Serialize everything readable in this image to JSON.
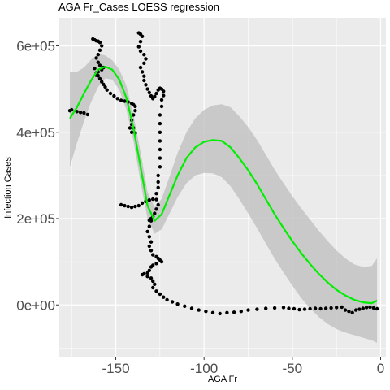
{
  "chart_data": {
    "type": "scatter",
    "title": "AGA Fr_Cases LOESS regression",
    "xlabel": "AGA Fr",
    "ylabel": "Infection Cases",
    "xlim": [
      -182,
      3
    ],
    "ylim": [
      -120000,
      665000
    ],
    "x_ticks": [
      -150,
      -100,
      -50,
      0
    ],
    "x_tick_labels": [
      "-150",
      "-100",
      "-50",
      "0"
    ],
    "y_ticks": [
      0,
      200000,
      400000,
      600000
    ],
    "y_tick_labels": [
      "0e+00",
      "2e+05",
      "4e+05",
      "6e+05"
    ],
    "grid": true,
    "panel_background": "#ebebeb",
    "grid_color": "#ffffff",
    "point_color": "#000000",
    "smooth_color": "#00ee00",
    "ribbon_color": "#bebebe",
    "points": [
      [
        -176,
        450000
      ],
      [
        -175,
        452000
      ],
      [
        -172,
        448000
      ],
      [
        -170,
        446000
      ],
      [
        -168,
        445000
      ],
      [
        -166,
        441000
      ],
      [
        -162,
        548000
      ],
      [
        -161,
        538000
      ],
      [
        -160,
        531000
      ],
      [
        -159,
        524000
      ],
      [
        -158,
        517000
      ],
      [
        -157,
        511000
      ],
      [
        -156,
        505000
      ],
      [
        -155,
        498000
      ],
      [
        -153,
        490000
      ],
      [
        -151,
        484000
      ],
      [
        -149,
        478000
      ],
      [
        -147,
        474000
      ],
      [
        -145,
        472000
      ],
      [
        -143,
        470000
      ],
      [
        -141,
        467000
      ],
      [
        -140,
        464000
      ],
      [
        -139,
        460000
      ],
      [
        -139,
        450000
      ],
      [
        -140,
        440000
      ],
      [
        -141,
        428000
      ],
      [
        -141,
        418000
      ],
      [
        -142,
        410000
      ],
      [
        -141,
        400000
      ],
      [
        -139,
        398000
      ],
      [
        -140,
        410000
      ],
      [
        -163,
        616000
      ],
      [
        -162,
        614000
      ],
      [
        -161,
        612000
      ],
      [
        -160,
        611000
      ],
      [
        -159,
        608000
      ],
      [
        -158,
        600000
      ],
      [
        -159,
        590000
      ],
      [
        -160,
        580000
      ],
      [
        -161,
        572000
      ],
      [
        -160,
        562000
      ],
      [
        -159,
        555000
      ],
      [
        -157,
        550000
      ],
      [
        -158,
        545000
      ],
      [
        -160,
        540000
      ],
      [
        -161,
        532000
      ],
      [
        -137,
        630000
      ],
      [
        -136,
        627000
      ],
      [
        -135,
        622000
      ],
      [
        -136,
        610000
      ],
      [
        -137,
        598000
      ],
      [
        -136,
        588000
      ],
      [
        -134,
        580000
      ],
      [
        -133,
        570000
      ],
      [
        -134,
        560000
      ],
      [
        -136,
        550000
      ],
      [
        -135,
        540000
      ],
      [
        -134,
        530000
      ],
      [
        -134,
        520000
      ],
      [
        -133,
        510000
      ],
      [
        -132,
        500000
      ],
      [
        -131,
        492000
      ],
      [
        -130,
        484000
      ],
      [
        -129,
        478000
      ],
      [
        -128,
        483000
      ],
      [
        -127,
        490000
      ],
      [
        -126,
        498000
      ],
      [
        -125,
        502000
      ],
      [
        -124,
        500000
      ],
      [
        -123,
        495000
      ],
      [
        -123,
        485000
      ],
      [
        -124,
        475000
      ],
      [
        -124,
        460000
      ],
      [
        -125,
        440000
      ],
      [
        -125,
        420000
      ],
      [
        -125,
        400000
      ],
      [
        -125,
        380000
      ],
      [
        -125,
        360000
      ],
      [
        -125,
        340000
      ],
      [
        -125,
        320000
      ],
      [
        -126,
        300000
      ],
      [
        -126,
        285000
      ],
      [
        -126,
        272000
      ],
      [
        -127,
        258000
      ],
      [
        -127,
        244000
      ],
      [
        -126,
        232000
      ],
      [
        -127,
        222000
      ],
      [
        -128,
        212000
      ],
      [
        -129,
        205000
      ],
      [
        -130,
        200000
      ],
      [
        -131,
        196000
      ],
      [
        -147,
        232000
      ],
      [
        -145,
        230000
      ],
      [
        -143,
        228000
      ],
      [
        -141,
        226000
      ],
      [
        -139,
        228000
      ],
      [
        -137,
        230000
      ],
      [
        -135,
        236000
      ],
      [
        -133,
        240000
      ],
      [
        -131,
        243000
      ],
      [
        -129,
        245000
      ],
      [
        -130,
        195000
      ],
      [
        -131,
        182000
      ],
      [
        -132,
        170000
      ],
      [
        -131,
        158000
      ],
      [
        -130,
        146000
      ],
      [
        -131,
        136000
      ],
      [
        -130,
        126000
      ],
      [
        -129,
        116000
      ],
      [
        -127,
        112000
      ],
      [
        -126,
        108000
      ],
      [
        -125,
        104000
      ],
      [
        -124,
        100000
      ],
      [
        -127,
        96000
      ],
      [
        -129,
        92000
      ],
      [
        -130,
        88000
      ],
      [
        -131,
        80000
      ],
      [
        -132,
        74000
      ],
      [
        -134,
        72000
      ],
      [
        -135,
        70000
      ],
      [
        -132,
        66000
      ],
      [
        -130,
        62000
      ],
      [
        -129,
        55000
      ],
      [
        -128,
        48000
      ],
      [
        -129,
        40000
      ],
      [
        -127,
        32000
      ],
      [
        -125,
        25000
      ],
      [
        -123,
        18000
      ],
      [
        -121,
        12000
      ],
      [
        -118,
        7000
      ],
      [
        -115,
        2000
      ],
      [
        -111,
        -3000
      ],
      [
        -107,
        -8000
      ],
      [
        -103,
        -12000
      ],
      [
        -99,
        -15000
      ],
      [
        -95,
        -18000
      ],
      [
        -91,
        -20000
      ],
      [
        -87,
        -18000
      ],
      [
        -83,
        -17000
      ],
      [
        -79,
        -15000
      ],
      [
        -75,
        -12000
      ],
      [
        -70,
        -10000
      ],
      [
        -65,
        -8000
      ],
      [
        -60,
        -7000
      ],
      [
        -55,
        -6000
      ],
      [
        -52,
        -8000
      ],
      [
        -49,
        -9000
      ],
      [
        -46,
        -11000
      ],
      [
        -43,
        -10000
      ],
      [
        -40,
        -9000
      ],
      [
        -37,
        -8000
      ],
      [
        -34,
        -9000
      ],
      [
        -31,
        -8000
      ],
      [
        -28,
        -7000
      ],
      [
        -25,
        -6000
      ],
      [
        -22,
        -5000
      ],
      [
        -20,
        -12000
      ],
      [
        -18,
        -15000
      ],
      [
        -16,
        -18000
      ],
      [
        -14,
        -12000
      ],
      [
        -12,
        -10000
      ],
      [
        -10,
        -8000
      ],
      [
        -8,
        -6000
      ],
      [
        -6,
        -5000
      ],
      [
        -4,
        -7000
      ],
      [
        -2,
        -9000
      ]
    ],
    "smooth": {
      "x": [
        -176,
        -172,
        -168,
        -164,
        -160,
        -156,
        -152,
        -148,
        -144,
        -140,
        -136,
        -132,
        -128,
        -124,
        -120,
        -115,
        -110,
        -105,
        -100,
        -95,
        -90,
        -85,
        -80,
        -75,
        -70,
        -65,
        -60,
        -55,
        -50,
        -45,
        -40,
        -35,
        -30,
        -25,
        -20,
        -15,
        -10,
        -5,
        -2
      ],
      "y": [
        432000,
        458000,
        490000,
        520000,
        545000,
        552000,
        545000,
        522000,
        480000,
        410000,
        320000,
        230000,
        195000,
        210000,
        250000,
        300000,
        340000,
        365000,
        378000,
        382000,
        380000,
        365000,
        340000,
        312000,
        280000,
        245000,
        210000,
        178000,
        148000,
        120000,
        95000,
        72000,
        52000,
        35000,
        22000,
        12000,
        6000,
        4000,
        10000
      ],
      "lower": [
        320000,
        375000,
        425000,
        470000,
        505000,
        525000,
        522000,
        498000,
        452000,
        380000,
        285000,
        200000,
        165000,
        175000,
        208000,
        250000,
        282000,
        300000,
        306000,
        305000,
        296000,
        275000,
        245000,
        212000,
        178000,
        142000,
        107000,
        75000,
        45000,
        16000,
        -8000,
        -28000,
        -44000,
        -56000,
        -64000,
        -70000,
        -76000,
        -82000,
        -88000
      ],
      "upper": [
        540000,
        540000,
        550000,
        568000,
        582000,
        578000,
        567000,
        545000,
        508000,
        440000,
        355000,
        262000,
        226000,
        246000,
        292000,
        352000,
        400000,
        432000,
        452000,
        462000,
        465000,
        458000,
        437000,
        412000,
        382000,
        348000,
        313000,
        282000,
        252000,
        224000,
        198000,
        172000,
        148000,
        126000,
        108000,
        94000,
        88000,
        90000,
        108000
      ]
    }
  }
}
